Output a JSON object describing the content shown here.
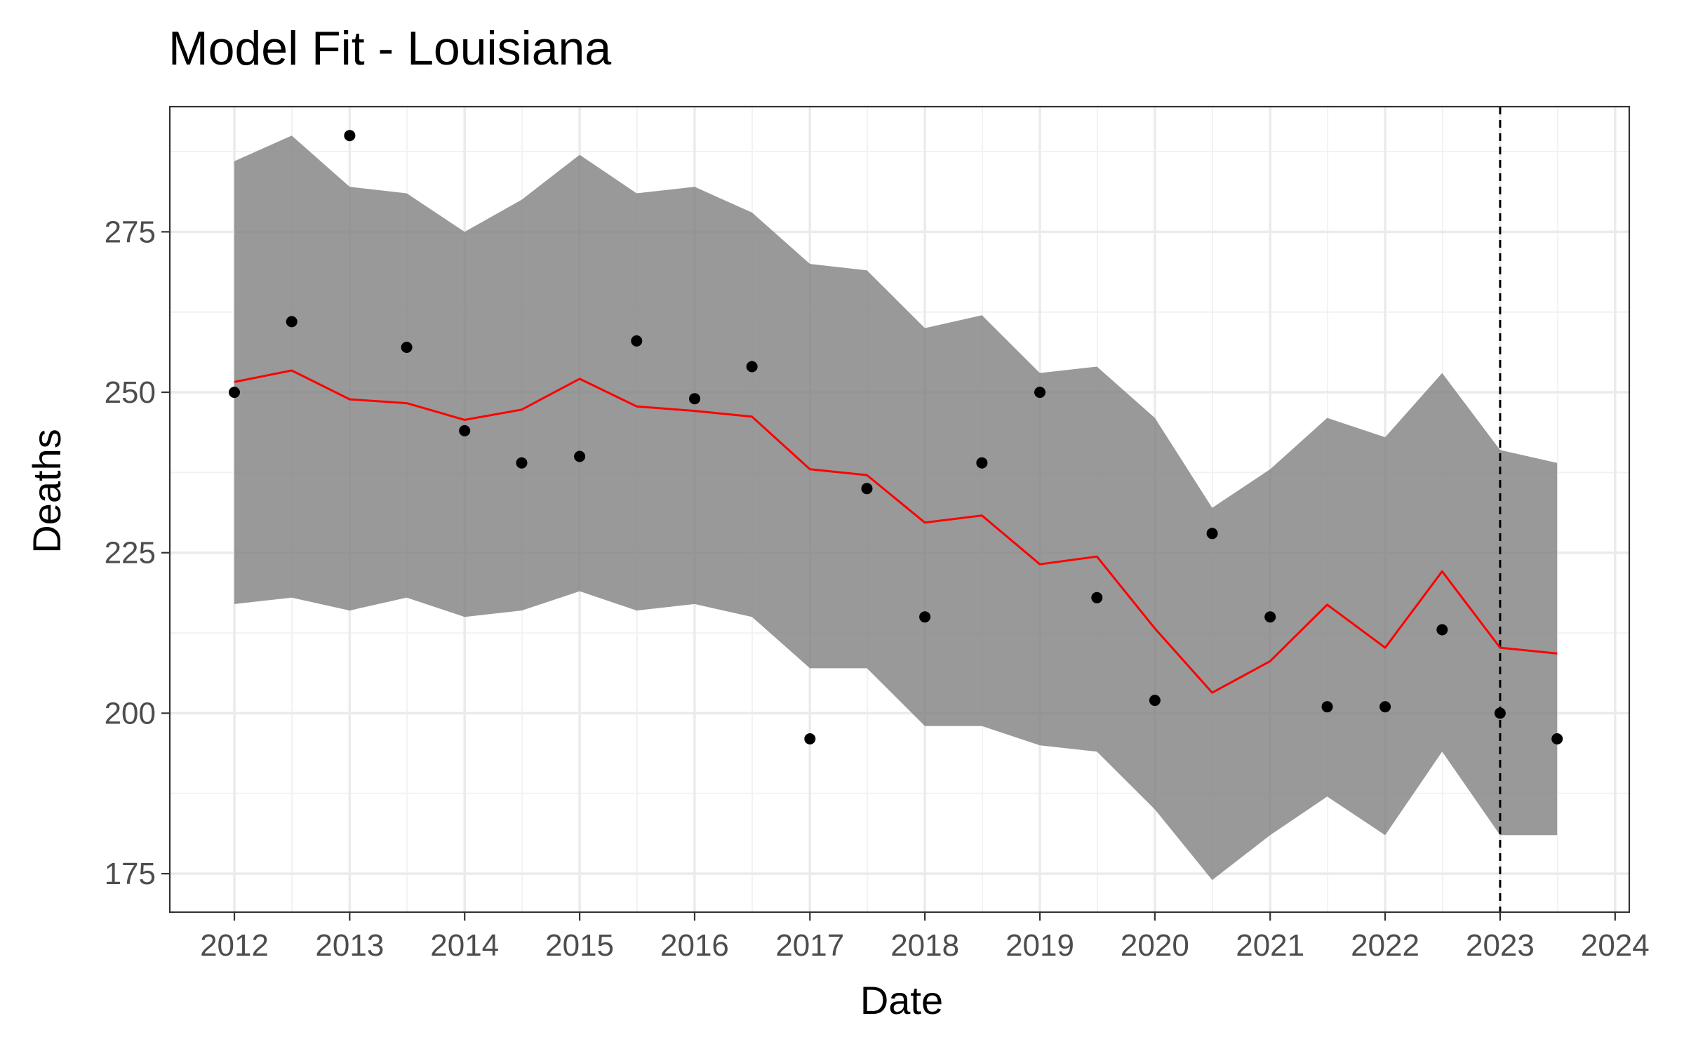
{
  "chart_data": {
    "type": "line",
    "title": "Model Fit - Louisiana",
    "xlabel": "Date",
    "ylabel": "Deaths",
    "x_ticks": [
      "2012",
      "2013",
      "2014",
      "2015",
      "2016",
      "2017",
      "2018",
      "2019",
      "2020",
      "2021",
      "2022",
      "2023",
      "2024"
    ],
    "y_ticks": [
      175,
      200,
      225,
      250,
      275
    ],
    "xlim": [
      "2011-06-10",
      "2024-02-15"
    ],
    "ylim": [
      169,
      294.5
    ],
    "grid": true,
    "legend": "none",
    "vline_date": "2023-01-01",
    "colors": {
      "ribbon": "#7f7f7f",
      "fit_line": "#ff0000",
      "points": "#000000",
      "vline": "#000000",
      "grid_major": "#ebebeb",
      "grid_minor": "#f2f2f2",
      "panel_border": "#333333",
      "axis_text": "#4d4d4d"
    },
    "series": [
      {
        "kind": "ribbon",
        "x": [
          "2012-01-01",
          "2012-07-01",
          "2013-01-01",
          "2013-07-01",
          "2014-01-01",
          "2014-07-01",
          "2015-01-01",
          "2015-07-01",
          "2016-01-01",
          "2016-07-01",
          "2017-01-01",
          "2017-07-01",
          "2018-01-01",
          "2018-07-01",
          "2019-01-01",
          "2019-07-01",
          "2020-01-01",
          "2020-07-01",
          "2021-01-01",
          "2021-07-01",
          "2022-01-01",
          "2022-07-01",
          "2023-01-01",
          "2023-07-01"
        ],
        "lower": [
          217,
          218,
          216,
          218,
          215,
          216,
          219,
          216,
          217,
          215,
          207,
          207,
          198,
          198,
          195,
          194,
          185,
          174,
          181,
          187,
          181,
          194,
          181,
          181
        ],
        "upper": [
          286,
          290,
          282,
          281,
          275,
          280,
          287,
          281,
          282,
          278,
          270,
          269,
          260,
          262,
          253,
          254,
          246,
          232,
          238,
          246,
          243,
          253,
          241,
          239
        ]
      },
      {
        "kind": "line",
        "x": [
          "2012-01-01",
          "2012-07-01",
          "2013-01-01",
          "2013-07-01",
          "2014-01-01",
          "2014-07-01",
          "2015-01-01",
          "2015-07-01",
          "2016-01-01",
          "2016-07-01",
          "2017-01-01",
          "2017-07-01",
          "2018-01-01",
          "2018-07-01",
          "2019-01-01",
          "2019-07-01",
          "2020-01-01",
          "2020-07-01",
          "2021-01-01",
          "2021-07-01",
          "2022-01-01",
          "2022-07-01",
          "2023-01-01",
          "2023-07-01"
        ],
        "values": [
          251.6,
          253.4,
          248.9,
          248.3,
          245.7,
          247.3,
          252.1,
          247.8,
          247.1,
          246.2,
          238,
          237.1,
          229.7,
          230.8,
          223.2,
          224.4,
          213.2,
          203.2,
          208.1,
          216.9,
          210.2,
          222.1,
          210.2,
          209.3
        ]
      },
      {
        "kind": "points",
        "x": [
          "2012-01-01",
          "2012-07-01",
          "2013-01-01",
          "2013-07-01",
          "2014-01-01",
          "2014-07-01",
          "2015-01-01",
          "2015-07-01",
          "2016-01-01",
          "2016-07-01",
          "2017-01-01",
          "2017-07-01",
          "2018-01-01",
          "2018-07-01",
          "2019-01-01",
          "2019-07-01",
          "2020-01-01",
          "2020-07-01",
          "2021-01-01",
          "2021-07-01",
          "2022-01-01",
          "2022-07-01",
          "2023-01-01",
          "2023-07-01"
        ],
        "values": [
          250,
          261,
          290,
          257,
          244,
          239,
          240,
          258,
          249,
          254,
          196,
          235,
          215,
          239,
          250,
          218,
          202,
          228,
          215,
          201,
          201,
          213,
          200,
          196
        ]
      }
    ]
  }
}
